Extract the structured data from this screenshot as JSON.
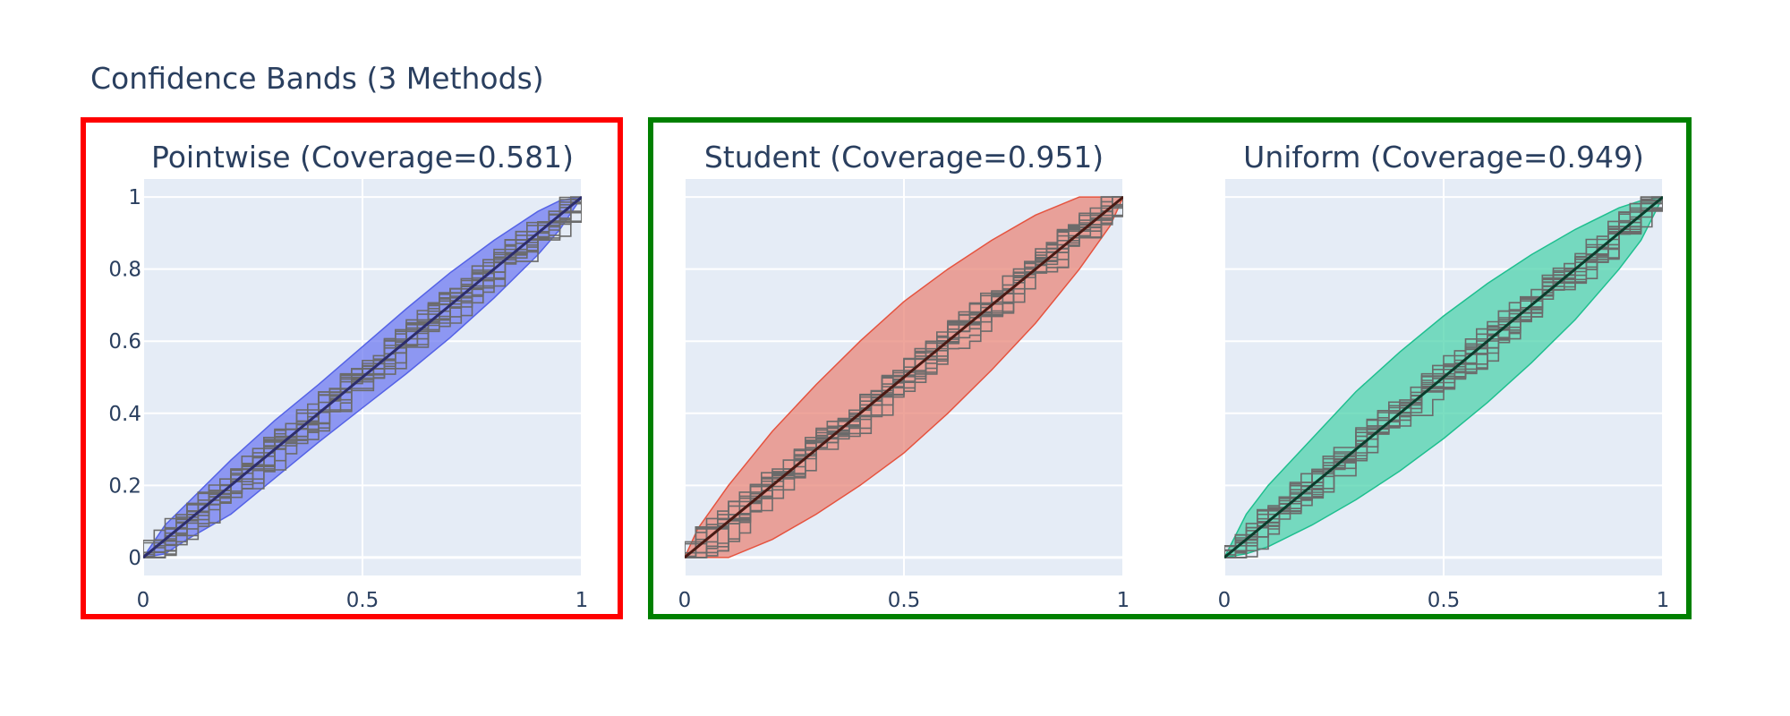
{
  "title": "Confidence Bands (3 Methods)",
  "colors": {
    "plot_bg": "#e5ecf6",
    "grid": "#ffffff",
    "text": "#2a3f5f",
    "sample_lines": "#6b6b6b",
    "frame_fail": "#ff0000",
    "frame_pass": "#008000"
  },
  "chart_data": [
    {
      "type": "area",
      "title": "Pointwise (Coverage=0.581)",
      "xlim": [
        0,
        1
      ],
      "ylim": [
        -0.05,
        1.05
      ],
      "x_ticks": [
        "0",
        "0.5",
        "1"
      ],
      "y_ticks": [
        "0",
        "0.2",
        "0.4",
        "0.6",
        "0.8",
        "1"
      ],
      "fill": "#6f7bf0",
      "line": "#5563e6",
      "center_line": "#2d2d6b",
      "band_x": [
        0,
        0.05,
        0.1,
        0.2,
        0.3,
        0.4,
        0.5,
        0.6,
        0.7,
        0.8,
        0.9,
        0.95,
        1
      ],
      "band_upper": [
        0,
        0.09,
        0.15,
        0.27,
        0.38,
        0.48,
        0.585,
        0.69,
        0.79,
        0.88,
        0.96,
        0.99,
        1
      ],
      "band_lower": [
        0,
        0.01,
        0.05,
        0.12,
        0.22,
        0.32,
        0.415,
        0.51,
        0.61,
        0.72,
        0.84,
        0.91,
        1
      ]
    },
    {
      "type": "area",
      "title": "Student (Coverage=0.951)",
      "xlim": [
        0,
        1
      ],
      "ylim": [
        -0.05,
        1.05
      ],
      "x_ticks": [
        "0",
        "0.5",
        "1"
      ],
      "y_ticks": [
        "0",
        "0.2",
        "0.4",
        "0.6",
        "0.8",
        "1"
      ],
      "fill": "#e8877a",
      "line": "#e5533f",
      "center_line": "#4a1a14",
      "band_x": [
        0,
        0.03,
        0.1,
        0.2,
        0.3,
        0.4,
        0.5,
        0.6,
        0.7,
        0.8,
        0.9,
        0.97,
        1
      ],
      "band_upper": [
        0,
        0.08,
        0.2,
        0.35,
        0.48,
        0.6,
        0.71,
        0.8,
        0.88,
        0.95,
        1,
        1,
        1
      ],
      "band_lower": [
        0,
        0,
        0,
        0.05,
        0.12,
        0.2,
        0.29,
        0.4,
        0.52,
        0.65,
        0.8,
        0.92,
        1
      ]
    },
    {
      "type": "area",
      "title": "Uniform (Coverage=0.949)",
      "xlim": [
        0,
        1
      ],
      "ylim": [
        -0.05,
        1.05
      ],
      "x_ticks": [
        "0",
        "0.5",
        "1"
      ],
      "y_ticks": [
        "0",
        "0.2",
        "0.4",
        "0.6",
        "0.8",
        "1"
      ],
      "fill": "#4fd3ac",
      "line": "#1fbf8f",
      "center_line": "#0b3d2c",
      "band_x": [
        0,
        0.05,
        0.1,
        0.2,
        0.3,
        0.4,
        0.5,
        0.6,
        0.7,
        0.8,
        0.9,
        0.95,
        1
      ],
      "band_upper": [
        0,
        0.12,
        0.2,
        0.33,
        0.46,
        0.57,
        0.67,
        0.76,
        0.84,
        0.91,
        0.97,
        0.99,
        1
      ],
      "band_lower": [
        0,
        0.01,
        0.03,
        0.09,
        0.16,
        0.24,
        0.33,
        0.43,
        0.54,
        0.66,
        0.8,
        0.88,
        1
      ]
    }
  ]
}
